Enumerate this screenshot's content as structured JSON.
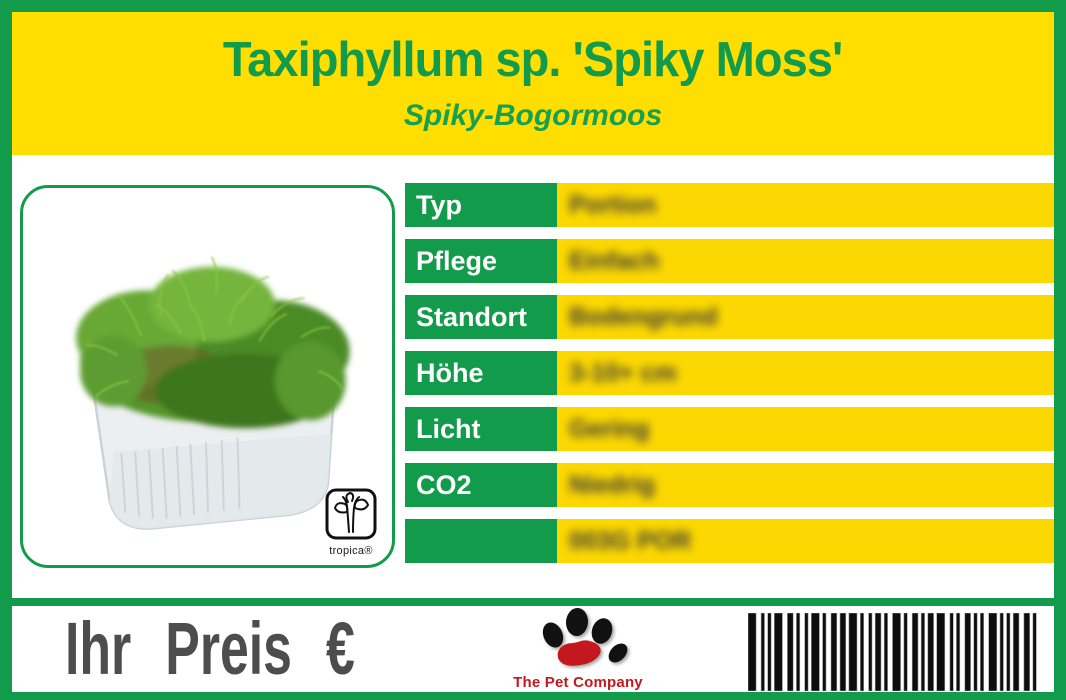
{
  "label": {
    "title": "Taxiphyllum sp. 'Spiky Moss'",
    "subtitle": "Spiky-Bogormoos"
  },
  "specs": {
    "rows": [
      {
        "label": "Typ",
        "value": "Portion"
      },
      {
        "label": "Pflege",
        "value": "Einfach"
      },
      {
        "label": "Standort",
        "value": "Bodengrund"
      },
      {
        "label": "Höhe",
        "value": "3-10+ cm"
      },
      {
        "label": "Licht",
        "value": "Gering"
      },
      {
        "label": "CO2",
        "value": "Niedrig"
      },
      {
        "label": "",
        "value": "003G POR"
      }
    ],
    "values_blurred": true
  },
  "photo": {
    "alt": "Portion of spiky moss in a transparent plastic container",
    "producer_logo_text": "tropica®"
  },
  "footer": {
    "price_label": "Ihr Preis €",
    "brand_name": "The Pet Company",
    "barcode_present": true
  },
  "colors": {
    "green": "#129b4b",
    "yellow": "#ffde00",
    "row_yellow": "#fcd802",
    "price_gray": "#4d4d4d",
    "brand_red": "#c3181e"
  }
}
